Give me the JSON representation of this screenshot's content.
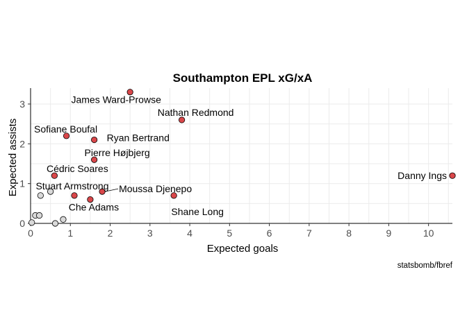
{
  "chart_data": {
    "type": "scatter",
    "title": "Southampton EPL xG/xA",
    "xlabel": "Expected goals",
    "ylabel": "Expected assists",
    "caption": "statsbomb/fbref",
    "xlim": [
      0,
      10.6
    ],
    "ylim": [
      0,
      3.4
    ],
    "x_ticks": [
      0,
      1,
      2,
      3,
      4,
      5,
      6,
      7,
      8,
      9,
      10
    ],
    "y_ticks": [
      0,
      1,
      2,
      3
    ],
    "grid": true,
    "highlight_color": "#d9474a",
    "other_color": "#d9d9d9",
    "points": [
      {
        "name": "James Ward-Prowse",
        "x": 2.5,
        "y": 3.3,
        "highlight": true
      },
      {
        "name": "Nathan Redmond",
        "x": 3.8,
        "y": 2.6,
        "highlight": true
      },
      {
        "name": "Sofiane Boufal",
        "x": 0.9,
        "y": 2.2,
        "highlight": true
      },
      {
        "name": "Ryan Bertrand",
        "x": 1.6,
        "y": 2.1,
        "highlight": true
      },
      {
        "name": "Pierre Højbjerg",
        "x": 1.6,
        "y": 1.6,
        "highlight": true
      },
      {
        "name": "Cédric Soares",
        "x": 0.6,
        "y": 1.2,
        "highlight": true
      },
      {
        "name": "Danny Ings",
        "x": 10.6,
        "y": 1.2,
        "highlight": true
      },
      {
        "name": "Stuart Armstrong",
        "x": 1.1,
        "y": 0.7,
        "highlight": true
      },
      {
        "name": "Moussa Djenepo",
        "x": 1.8,
        "y": 0.8,
        "highlight": true
      },
      {
        "name": "Shane Long",
        "x": 3.6,
        "y": 0.7,
        "highlight": true
      },
      {
        "name": "Che Adams",
        "x": 1.5,
        "y": 0.6,
        "highlight": true
      },
      {
        "name": "",
        "x": 0.25,
        "y": 0.7,
        "highlight": false
      },
      {
        "name": "",
        "x": 0.5,
        "y": 0.8,
        "highlight": false
      },
      {
        "name": "",
        "x": 0.12,
        "y": 0.2,
        "highlight": false
      },
      {
        "name": "",
        "x": 0.22,
        "y": 0.2,
        "highlight": false
      },
      {
        "name": "",
        "x": 0.82,
        "y": 0.1,
        "highlight": false
      },
      {
        "name": "",
        "x": 0.62,
        "y": 0.0,
        "highlight": false
      },
      {
        "name": "",
        "x": 0.03,
        "y": 0.02,
        "highlight": false
      }
    ]
  }
}
